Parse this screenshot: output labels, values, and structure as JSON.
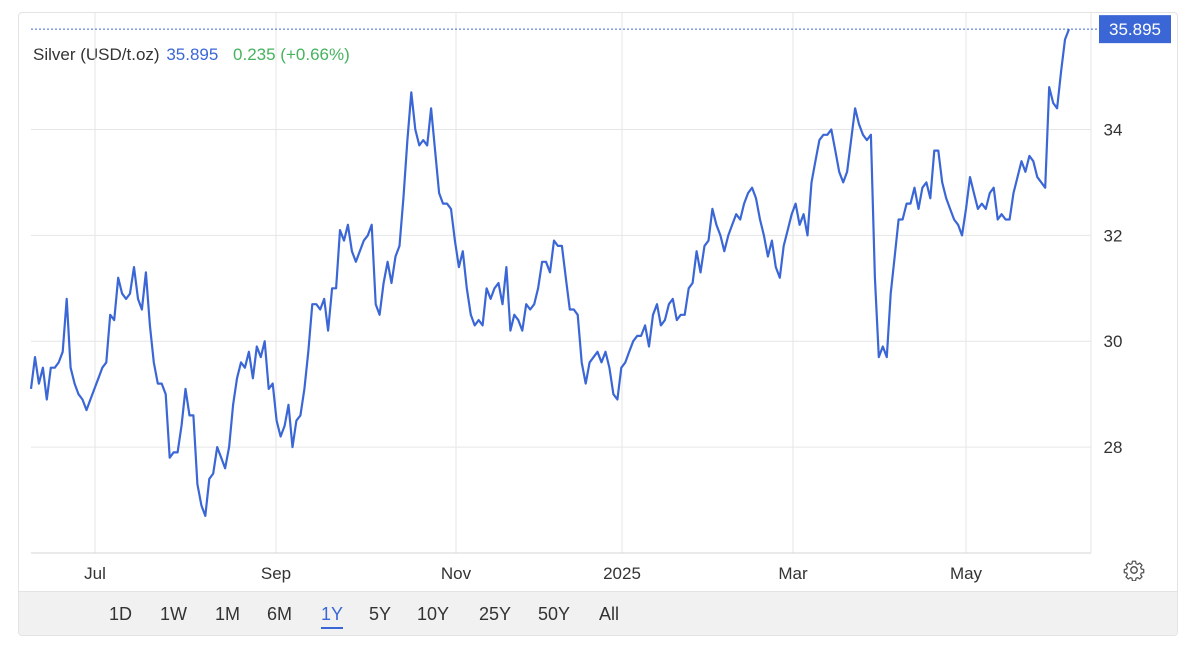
{
  "header": {
    "instrument": "Silver (USD/t.oz)",
    "price": "35.895",
    "change": "0.235 (+0.66%)"
  },
  "last_price_label": "35.895",
  "range_buttons": [
    {
      "label": "1D"
    },
    {
      "label": "1W"
    },
    {
      "label": "1M"
    },
    {
      "label": "6M"
    },
    {
      "label": "1Y",
      "active": true
    },
    {
      "label": "5Y"
    },
    {
      "label": "10Y"
    },
    {
      "label": "25Y"
    },
    {
      "label": "50Y"
    },
    {
      "label": "All"
    }
  ],
  "colors": {
    "line": "#3b67d6",
    "positive": "#46b35e",
    "grid": "#e6e6e6"
  },
  "icons": {
    "settings": "gear-icon"
  },
  "chart_data": {
    "type": "line",
    "x_axis_labels": [
      "Jul",
      "Sep",
      "Nov",
      "2025",
      "Mar",
      "May"
    ],
    "y_ticks": [
      28,
      30,
      32,
      34
    ],
    "ylim": [
      26,
      36.2
    ],
    "grid": "horizontal and vertical",
    "last_value": 35.895,
    "series": [
      {
        "values": [
          29.1,
          29.7,
          29.2,
          29.5,
          28.9,
          29.5,
          29.5,
          29.6,
          29.8,
          30.8,
          29.5,
          29.2,
          29.0,
          28.9,
          28.7,
          28.9,
          29.1,
          29.3,
          29.5,
          29.6,
          30.5,
          30.4,
          31.2,
          30.9,
          30.8,
          30.9,
          31.4,
          30.8,
          30.6,
          31.3,
          30.3,
          29.6,
          29.2,
          29.2,
          29.0,
          27.8,
          27.9,
          27.9,
          28.4,
          29.1,
          28.6,
          28.6,
          27.3,
          26.9,
          26.7,
          27.4,
          27.5,
          28.0,
          27.8,
          27.6,
          28.0,
          28.8,
          29.3,
          29.6,
          29.5,
          29.8,
          29.3,
          29.9,
          29.7,
          30.0,
          29.1,
          29.2,
          28.5,
          28.2,
          28.4,
          28.8,
          28.0,
          28.5,
          28.6,
          29.1,
          29.8,
          30.7,
          30.7,
          30.6,
          30.8,
          30.2,
          31.0,
          31.0,
          32.1,
          31.9,
          32.2,
          31.7,
          31.5,
          31.7,
          31.9,
          32.0,
          32.2,
          30.7,
          30.5,
          31.1,
          31.5,
          31.1,
          31.6,
          31.8,
          32.7,
          33.8,
          34.7,
          34.0,
          33.7,
          33.8,
          33.7,
          34.4,
          33.6,
          32.8,
          32.6,
          32.6,
          32.5,
          31.9,
          31.4,
          31.7,
          31.0,
          30.5,
          30.3,
          30.4,
          30.3,
          31.0,
          30.8,
          31.0,
          31.1,
          30.7,
          31.4,
          30.2,
          30.5,
          30.4,
          30.2,
          30.7,
          30.6,
          30.7,
          31.0,
          31.5,
          31.5,
          31.3,
          31.9,
          31.8,
          31.8,
          31.2,
          30.6,
          30.6,
          30.5,
          29.6,
          29.2,
          29.6,
          29.7,
          29.8,
          29.6,
          29.8,
          29.5,
          29.0,
          28.9,
          29.5,
          29.6,
          29.8,
          30.0,
          30.1,
          30.1,
          30.3,
          29.9,
          30.5,
          30.7,
          30.3,
          30.4,
          30.7,
          30.8,
          30.4,
          30.5,
          30.5,
          31.0,
          31.1,
          31.7,
          31.3,
          31.8,
          31.9,
          32.5,
          32.2,
          32.0,
          31.7,
          32.0,
          32.2,
          32.4,
          32.3,
          32.6,
          32.8,
          32.9,
          32.7,
          32.3,
          32.0,
          31.6,
          31.9,
          31.4,
          31.2,
          31.8,
          32.1,
          32.4,
          32.6,
          32.2,
          32.4,
          32.0,
          33.0,
          33.4,
          33.8,
          33.9,
          33.9,
          34.0,
          33.6,
          33.2,
          33.0,
          33.2,
          33.8,
          34.4,
          34.1,
          33.9,
          33.8,
          33.9,
          31.2,
          29.7,
          29.9,
          29.7,
          30.9,
          31.6,
          32.3,
          32.3,
          32.6,
          32.6,
          32.9,
          32.5,
          32.9,
          33.0,
          32.7,
          33.6,
          33.6,
          33.0,
          32.7,
          32.5,
          32.3,
          32.2,
          32.0,
          32.5,
          33.1,
          32.8,
          32.5,
          32.6,
          32.5,
          32.8,
          32.9,
          32.3,
          32.4,
          32.3,
          32.3,
          32.8,
          33.1,
          33.4,
          33.2,
          33.5,
          33.4,
          33.1,
          33.0,
          32.9,
          34.8,
          34.5,
          34.4,
          35.1,
          35.7,
          35.895
        ]
      }
    ]
  }
}
